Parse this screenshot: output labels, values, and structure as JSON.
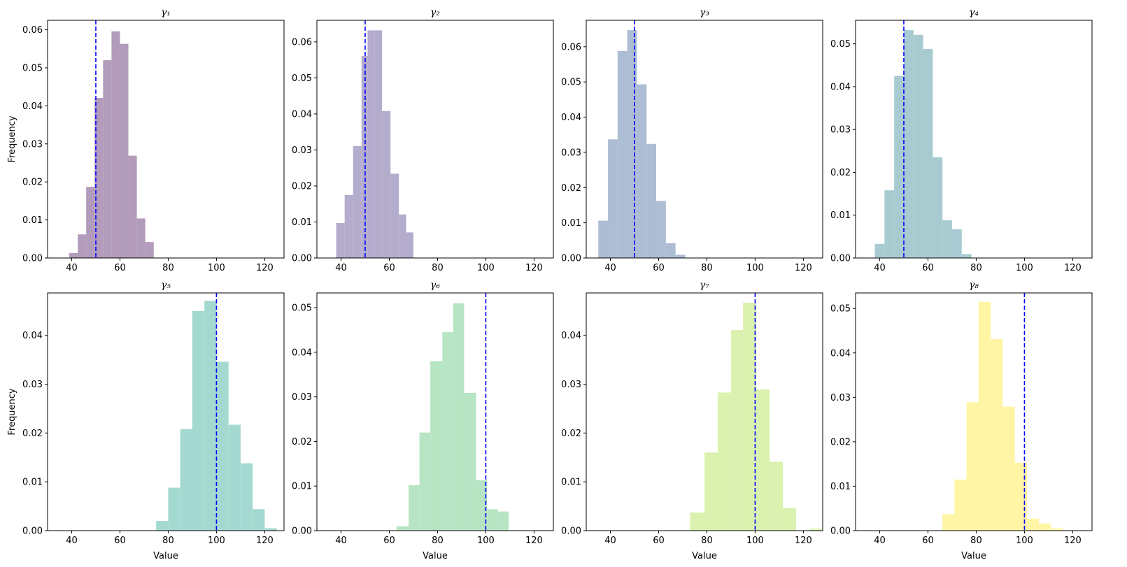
{
  "chart_data": [
    {
      "type": "histogram",
      "title": "γ₁",
      "xlabel": "",
      "ylabel": "Frequency",
      "xlim": [
        30,
        128
      ],
      "ylim": [
        0,
        0.0625
      ],
      "xticks": [
        40,
        60,
        80,
        100,
        120
      ],
      "yticks": [
        0.0,
        0.01,
        0.02,
        0.03,
        0.04,
        0.05,
        0.06
      ],
      "color": "#b29bbb",
      "reference_line": 50,
      "bins": [
        {
          "x0": 39,
          "x1": 42.5,
          "v": 0.0013
        },
        {
          "x0": 42.5,
          "x1": 46,
          "v": 0.0062
        },
        {
          "x0": 46,
          "x1": 49.5,
          "v": 0.0187
        },
        {
          "x0": 49.5,
          "x1": 53,
          "v": 0.0421
        },
        {
          "x0": 53,
          "x1": 56.5,
          "v": 0.052
        },
        {
          "x0": 56.5,
          "x1": 60,
          "v": 0.0596
        },
        {
          "x0": 60,
          "x1": 63.5,
          "v": 0.0563
        },
        {
          "x0": 63.5,
          "x1": 67,
          "v": 0.0269
        },
        {
          "x0": 67,
          "x1": 70.5,
          "v": 0.0104
        },
        {
          "x0": 70.5,
          "x1": 74,
          "v": 0.0042
        }
      ]
    },
    {
      "type": "histogram",
      "title": "γ₂",
      "xlabel": "",
      "ylabel": "",
      "xlim": [
        30,
        128
      ],
      "ylim": [
        0,
        0.066
      ],
      "xticks": [
        40,
        60,
        80,
        100,
        120
      ],
      "yticks": [
        0.0,
        0.01,
        0.02,
        0.03,
        0.04,
        0.05,
        0.06
      ],
      "color": "#b4accd",
      "reference_line": 50,
      "bins": [
        {
          "x0": 38,
          "x1": 41.5,
          "v": 0.0097
        },
        {
          "x0": 41.5,
          "x1": 45,
          "v": 0.0175
        },
        {
          "x0": 45,
          "x1": 48.5,
          "v": 0.0311
        },
        {
          "x0": 48.5,
          "x1": 51,
          "v": 0.0561
        },
        {
          "x0": 51,
          "x1": 54,
          "v": 0.0632
        },
        {
          "x0": 54,
          "x1": 57,
          "v": 0.0632
        },
        {
          "x0": 57,
          "x1": 60.5,
          "v": 0.0408
        },
        {
          "x0": 60.5,
          "x1": 64,
          "v": 0.0234
        },
        {
          "x0": 64,
          "x1": 67,
          "v": 0.0121
        },
        {
          "x0": 67,
          "x1": 70,
          "v": 0.0071
        }
      ]
    },
    {
      "type": "histogram",
      "title": "γ₃",
      "xlabel": "",
      "ylabel": "",
      "xlim": [
        30,
        128
      ],
      "ylim": [
        0,
        0.0675
      ],
      "xticks": [
        40,
        60,
        80,
        100,
        120
      ],
      "yticks": [
        0.0,
        0.01,
        0.02,
        0.03,
        0.04,
        0.05,
        0.06
      ],
      "color": "#adbdd3",
      "reference_line": 50,
      "bins": [
        {
          "x0": 35,
          "x1": 39,
          "v": 0.0106
        },
        {
          "x0": 39,
          "x1": 43,
          "v": 0.0337
        },
        {
          "x0": 43,
          "x1": 47,
          "v": 0.0588
        },
        {
          "x0": 47,
          "x1": 51,
          "v": 0.0647
        },
        {
          "x0": 51,
          "x1": 55,
          "v": 0.0493
        },
        {
          "x0": 55,
          "x1": 59,
          "v": 0.0324
        },
        {
          "x0": 59,
          "x1": 63,
          "v": 0.0162
        },
        {
          "x0": 63,
          "x1": 67,
          "v": 0.0042
        },
        {
          "x0": 67,
          "x1": 71,
          "v": 0.0009
        }
      ]
    },
    {
      "type": "histogram",
      "title": "γ₄",
      "xlabel": "",
      "ylabel": "",
      "xlim": [
        30,
        128
      ],
      "ylim": [
        0,
        0.0555
      ],
      "xticks": [
        40,
        60,
        80,
        100,
        120
      ],
      "yticks": [
        0.0,
        0.01,
        0.02,
        0.03,
        0.04,
        0.05
      ],
      "color": "#a7cbd0",
      "reference_line": 50,
      "bins": [
        {
          "x0": 38,
          "x1": 42,
          "v": 0.0033
        },
        {
          "x0": 42,
          "x1": 46,
          "v": 0.0158
        },
        {
          "x0": 46,
          "x1": 50,
          "v": 0.0425
        },
        {
          "x0": 50,
          "x1": 54,
          "v": 0.0532
        },
        {
          "x0": 54,
          "x1": 58,
          "v": 0.0521
        },
        {
          "x0": 58,
          "x1": 62,
          "v": 0.0488
        },
        {
          "x0": 62,
          "x1": 66,
          "v": 0.0235
        },
        {
          "x0": 66,
          "x1": 70,
          "v": 0.0088
        },
        {
          "x0": 70,
          "x1": 74,
          "v": 0.0067
        },
        {
          "x0": 74,
          "x1": 78,
          "v": 0.0009
        }
      ]
    },
    {
      "type": "histogram",
      "title": "γ₅",
      "xlabel": "Value",
      "ylabel": "Frequency",
      "xlim": [
        30,
        128
      ],
      "ylim": [
        0,
        0.0487
      ],
      "xticks": [
        40,
        60,
        80,
        100,
        120
      ],
      "yticks": [
        0.0,
        0.01,
        0.02,
        0.03,
        0.04
      ],
      "color": "#a4d9d1",
      "reference_line": 100,
      "bins": [
        {
          "x0": 75,
          "x1": 80,
          "v": 0.002
        },
        {
          "x0": 80,
          "x1": 85,
          "v": 0.0088
        },
        {
          "x0": 85,
          "x1": 90,
          "v": 0.0208
        },
        {
          "x0": 90,
          "x1": 95,
          "v": 0.045
        },
        {
          "x0": 95,
          "x1": 100,
          "v": 0.0471
        },
        {
          "x0": 100,
          "x1": 105,
          "v": 0.0346
        },
        {
          "x0": 105,
          "x1": 110,
          "v": 0.0217
        },
        {
          "x0": 110,
          "x1": 115,
          "v": 0.0138
        },
        {
          "x0": 115,
          "x1": 120,
          "v": 0.0044
        },
        {
          "x0": 120,
          "x1": 125,
          "v": 0.0005
        }
      ]
    },
    {
      "type": "histogram",
      "title": "γ₆",
      "xlabel": "Value",
      "ylabel": "",
      "xlim": [
        30,
        128
      ],
      "ylim": [
        0,
        0.0533
      ],
      "xticks": [
        40,
        60,
        80,
        100,
        120
      ],
      "yticks": [
        0.0,
        0.01,
        0.02,
        0.03,
        0.04,
        0.05
      ],
      "color": "#b7e5c4",
      "reference_line": 100,
      "bins": [
        {
          "x0": 63,
          "x1": 68,
          "v": 0.001
        },
        {
          "x0": 68,
          "x1": 72.5,
          "v": 0.0102
        },
        {
          "x0": 72.5,
          "x1": 77,
          "v": 0.022
        },
        {
          "x0": 77,
          "x1": 82,
          "v": 0.038
        },
        {
          "x0": 82,
          "x1": 86.5,
          "v": 0.0445
        },
        {
          "x0": 86.5,
          "x1": 91,
          "v": 0.051
        },
        {
          "x0": 91,
          "x1": 96,
          "v": 0.0309
        },
        {
          "x0": 96,
          "x1": 100.5,
          "v": 0.0113
        },
        {
          "x0": 100.5,
          "x1": 105,
          "v": 0.0048
        },
        {
          "x0": 105,
          "x1": 109.5,
          "v": 0.0043
        }
      ]
    },
    {
      "type": "histogram",
      "title": "γ₇",
      "xlabel": "Value",
      "ylabel": "",
      "xlim": [
        30,
        128
      ],
      "ylim": [
        0,
        0.0487
      ],
      "xticks": [
        40,
        60,
        80,
        100,
        120
      ],
      "yticks": [
        0.0,
        0.01,
        0.02,
        0.03,
        0.04
      ],
      "color": "#daf1af",
      "reference_line": 100,
      "bins": [
        {
          "x0": 73,
          "x1": 79,
          "v": 0.0037
        },
        {
          "x0": 79,
          "x1": 84.5,
          "v": 0.016
        },
        {
          "x0": 84.5,
          "x1": 90,
          "v": 0.0283
        },
        {
          "x0": 90,
          "x1": 95,
          "v": 0.0411
        },
        {
          "x0": 95,
          "x1": 100.5,
          "v": 0.0467
        },
        {
          "x0": 100.5,
          "x1": 106,
          "v": 0.0289
        },
        {
          "x0": 106,
          "x1": 111.5,
          "v": 0.0141
        },
        {
          "x0": 111.5,
          "x1": 117,
          "v": 0.0046
        },
        {
          "x0": 117,
          "x1": 122.5,
          "v": 0.0
        },
        {
          "x0": 122.5,
          "x1": 128,
          "v": 0.0004
        }
      ]
    },
    {
      "type": "histogram",
      "title": "γ₈",
      "xlabel": "Value",
      "ylabel": "",
      "xlim": [
        30,
        128
      ],
      "ylim": [
        0,
        0.0535
      ],
      "xticks": [
        40,
        60,
        80,
        100,
        120
      ],
      "yticks": [
        0.0,
        0.01,
        0.02,
        0.03,
        0.04,
        0.05
      ],
      "color": "#fff5a5",
      "reference_line": 100,
      "bins": [
        {
          "x0": 66,
          "x1": 71,
          "v": 0.0037
        },
        {
          "x0": 71,
          "x1": 76,
          "v": 0.0115
        },
        {
          "x0": 76,
          "x1": 81,
          "v": 0.0289
        },
        {
          "x0": 81,
          "x1": 86,
          "v": 0.0515
        },
        {
          "x0": 86,
          "x1": 91,
          "v": 0.0431
        },
        {
          "x0": 91,
          "x1": 96,
          "v": 0.0279
        },
        {
          "x0": 96,
          "x1": 101,
          "v": 0.0153
        },
        {
          "x0": 101,
          "x1": 106,
          "v": 0.0027
        },
        {
          "x0": 106,
          "x1": 111,
          "v": 0.0016
        },
        {
          "x0": 111,
          "x1": 116,
          "v": 0.0005
        }
      ]
    }
  ]
}
